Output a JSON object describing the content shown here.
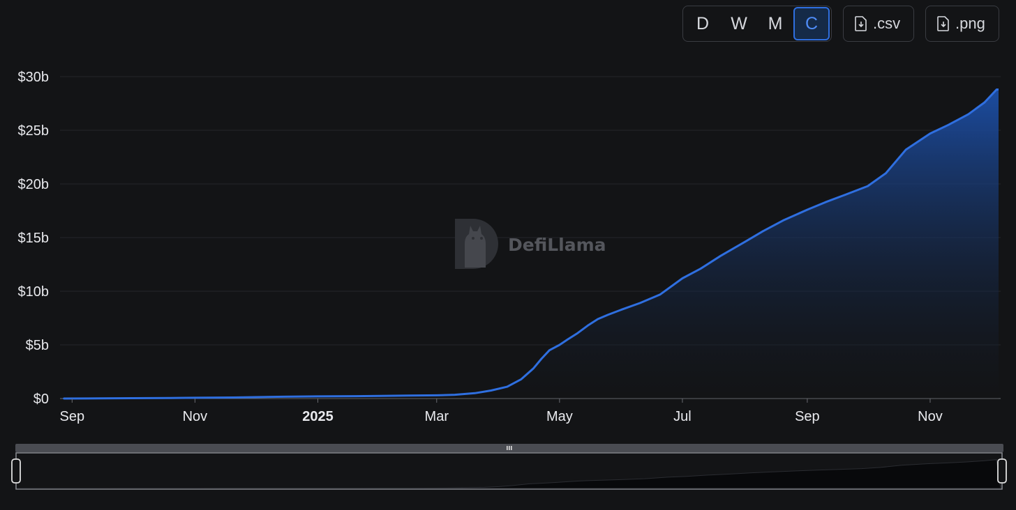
{
  "toolbar": {
    "periods": [
      {
        "label": "D",
        "active": false
      },
      {
        "label": "W",
        "active": false
      },
      {
        "label": "M",
        "active": false
      },
      {
        "label": "C",
        "active": true
      }
    ],
    "csv_label": ".csv",
    "png_label": ".png",
    "download_icon": "file-download-icon"
  },
  "watermark": {
    "text": "DefiLlama",
    "icon": "llama-logo-icon"
  },
  "colors": {
    "background": "#131416",
    "line": "#2f6fe0",
    "area_top": "#1c4fa8",
    "grid": "#24262b",
    "active_button": "#4f8cf7"
  },
  "chart_data": {
    "type": "area",
    "title": "",
    "xlabel": "",
    "ylabel": "",
    "cumulative": true,
    "x_range": [
      "2024-08-26",
      "2025-12-06"
    ],
    "ylim": [
      0,
      30
    ],
    "y_ticks": [
      {
        "value": 0,
        "label": "$0"
      },
      {
        "value": 5,
        "label": "$5b"
      },
      {
        "value": 10,
        "label": "$10b"
      },
      {
        "value": 15,
        "label": "$15b"
      },
      {
        "value": 20,
        "label": "$20b"
      },
      {
        "value": 25,
        "label": "$25b"
      },
      {
        "value": 30,
        "label": "$30b"
      }
    ],
    "x_ticks": [
      {
        "date": "2024-09-01",
        "label": "Sep",
        "bold": false
      },
      {
        "date": "2024-11-01",
        "label": "Nov",
        "bold": false
      },
      {
        "date": "2025-01-01",
        "label": "2025",
        "bold": true
      },
      {
        "date": "2025-03-01",
        "label": "Mar",
        "bold": false
      },
      {
        "date": "2025-05-01",
        "label": "May",
        "bold": false
      },
      {
        "date": "2025-07-01",
        "label": "Jul",
        "bold": false
      },
      {
        "date": "2025-09-01",
        "label": "Sep",
        "bold": false
      },
      {
        "date": "2025-11-01",
        "label": "Nov",
        "bold": false
      }
    ],
    "grid": true,
    "series": [
      {
        "points": [
          [
            "2024-08-28",
            0.0
          ],
          [
            "2024-09-15",
            0.01
          ],
          [
            "2024-10-01",
            0.03
          ],
          [
            "2024-10-20",
            0.05
          ],
          [
            "2024-11-01",
            0.07
          ],
          [
            "2024-11-20",
            0.1
          ],
          [
            "2024-12-01",
            0.13
          ],
          [
            "2024-12-15",
            0.17
          ],
          [
            "2025-01-01",
            0.2
          ],
          [
            "2025-01-20",
            0.22
          ],
          [
            "2025-02-01",
            0.24
          ],
          [
            "2025-02-15",
            0.27
          ],
          [
            "2025-03-01",
            0.3
          ],
          [
            "2025-03-10",
            0.35
          ],
          [
            "2025-03-20",
            0.5
          ],
          [
            "2025-03-28",
            0.75
          ],
          [
            "2025-04-05",
            1.1
          ],
          [
            "2025-04-12",
            1.8
          ],
          [
            "2025-04-18",
            2.8
          ],
          [
            "2025-04-22",
            3.7
          ],
          [
            "2025-04-26",
            4.5
          ],
          [
            "2025-05-01",
            5.0
          ],
          [
            "2025-05-05",
            5.5
          ],
          [
            "2025-05-10",
            6.1
          ],
          [
            "2025-05-15",
            6.8
          ],
          [
            "2025-05-20",
            7.4
          ],
          [
            "2025-05-25",
            7.8
          ],
          [
            "2025-06-01",
            8.3
          ],
          [
            "2025-06-10",
            8.9
          ],
          [
            "2025-06-20",
            9.7
          ],
          [
            "2025-07-01",
            11.2
          ],
          [
            "2025-07-10",
            12.1
          ],
          [
            "2025-07-20",
            13.3
          ],
          [
            "2025-08-01",
            14.6
          ],
          [
            "2025-08-10",
            15.6
          ],
          [
            "2025-08-20",
            16.6
          ],
          [
            "2025-09-01",
            17.6
          ],
          [
            "2025-09-10",
            18.3
          ],
          [
            "2025-09-20",
            19.0
          ],
          [
            "2025-10-01",
            19.8
          ],
          [
            "2025-10-10",
            21.0
          ],
          [
            "2025-10-20",
            23.2
          ],
          [
            "2025-11-01",
            24.7
          ],
          [
            "2025-11-10",
            25.5
          ],
          [
            "2025-11-20",
            26.5
          ],
          [
            "2025-11-28",
            27.6
          ],
          [
            "2025-12-04",
            28.8
          ]
        ]
      }
    ]
  }
}
